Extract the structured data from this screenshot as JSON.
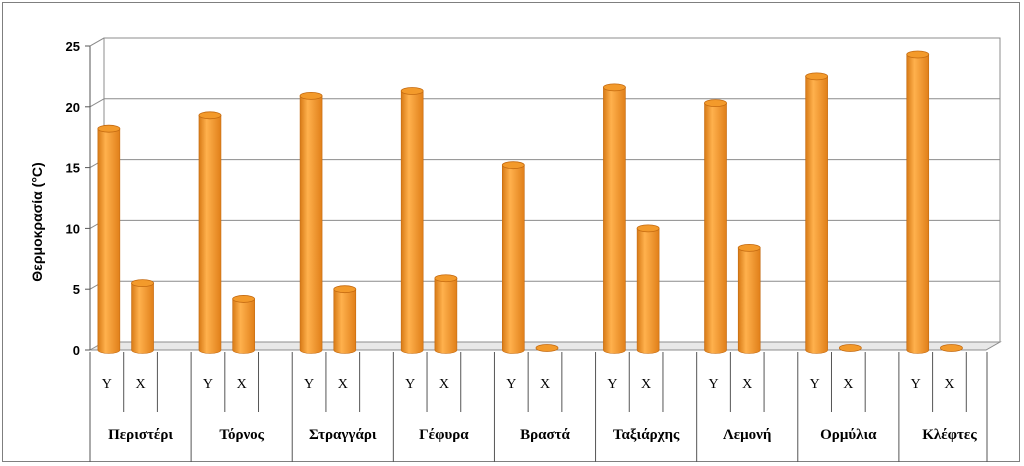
{
  "chart_data": {
    "type": "bar",
    "title": "",
    "xlabel": "",
    "ylabel": "Θερμοκρασία (°C)",
    "ylim": [
      0,
      25
    ],
    "yticks": [
      0,
      5,
      10,
      15,
      20,
      25
    ],
    "grid": true,
    "legend": "none",
    "bar_color": "#f39a2b",
    "bar_edge_color": "#c46a10",
    "categories": [
      "Περιστέρι",
      "Τόρνος",
      "Στραγγάρι",
      "Γέφυρα",
      "Βραστά",
      "Ταξιάρχης",
      "Λεμονή",
      "Ορμύλια",
      "Κλέφτες"
    ],
    "sub_categories": [
      "Υ",
      "Χ"
    ],
    "series": [
      {
        "values": [
          18.2,
          19.3,
          20.9,
          21.3,
          15.2,
          21.6,
          20.3,
          22.5,
          24.3
        ]
      },
      {
        "values": [
          5.5,
          4.2,
          5.0,
          5.9,
          0,
          10.0,
          8.4,
          0,
          0
        ]
      }
    ]
  }
}
